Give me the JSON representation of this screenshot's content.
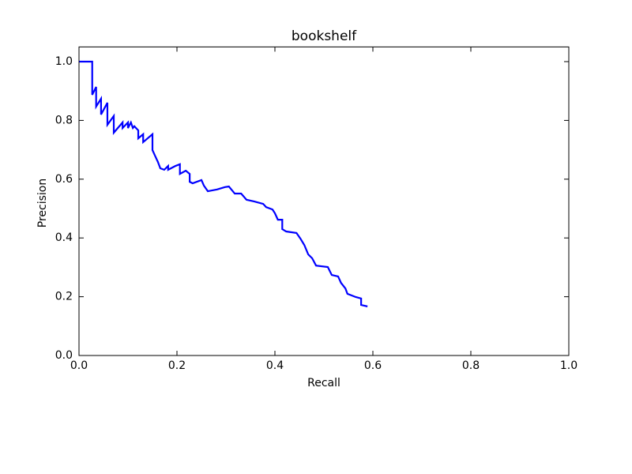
{
  "chart_data": {
    "type": "line",
    "title": "bookshelf",
    "xlabel": "Recall",
    "ylabel": "Precision",
    "color": "#0000ff",
    "xlim": [
      0,
      1
    ],
    "ylim": [
      0,
      1.05
    ],
    "xticks": [
      {
        "value": 0,
        "label": "0.0"
      },
      0.2,
      0.4,
      0.6,
      0.8,
      {
        "value": 1,
        "label": "1.0"
      }
    ],
    "yticks": [
      {
        "value": 0,
        "label": "0.0"
      },
      0.2,
      0.4,
      0.6,
      0.8,
      {
        "value": 1,
        "label": "1.0"
      }
    ],
    "x": [
      0,
      0.027,
      0.027,
      0.035,
      0.035,
      0.045,
      0.045,
      0.058,
      0.058,
      0.071,
      0.071,
      0.089,
      0.089,
      0.1,
      0.1,
      0.106,
      0.11,
      0.113,
      0.121,
      0.121,
      0.131,
      0.131,
      0.15,
      0.15,
      0.156,
      0.161,
      0.166,
      0.174,
      0.182,
      0.182,
      0.197,
      0.206,
      0.206,
      0.218,
      0.226,
      0.226,
      0.232,
      0.25,
      0.255,
      0.263,
      0.282,
      0.298,
      0.306,
      0.311,
      0.318,
      0.331,
      0.342,
      0.358,
      0.376,
      0.382,
      0.395,
      0.4,
      0.406,
      0.415,
      0.415,
      0.423,
      0.444,
      0.452,
      0.46,
      0.468,
      0.476,
      0.484,
      0.508,
      0.516,
      0.529,
      0.535,
      0.544,
      0.548,
      0.565,
      0.576,
      0.576,
      0.589
    ],
    "values": [
      1.0,
      1.0,
      0.887,
      0.914,
      0.847,
      0.874,
      0.82,
      0.86,
      0.785,
      0.815,
      0.758,
      0.793,
      0.774,
      0.793,
      0.774,
      0.793,
      0.774,
      0.78,
      0.766,
      0.739,
      0.753,
      0.726,
      0.753,
      0.699,
      0.677,
      0.659,
      0.637,
      0.632,
      0.645,
      0.632,
      0.645,
      0.651,
      0.618,
      0.629,
      0.618,
      0.591,
      0.586,
      0.597,
      0.578,
      0.559,
      0.565,
      0.573,
      0.575,
      0.565,
      0.551,
      0.551,
      0.53,
      0.524,
      0.516,
      0.505,
      0.497,
      0.484,
      0.462,
      0.462,
      0.43,
      0.422,
      0.417,
      0.398,
      0.376,
      0.344,
      0.331,
      0.306,
      0.301,
      0.274,
      0.269,
      0.247,
      0.228,
      0.21,
      0.199,
      0.194,
      0.172,
      0.167
    ]
  }
}
